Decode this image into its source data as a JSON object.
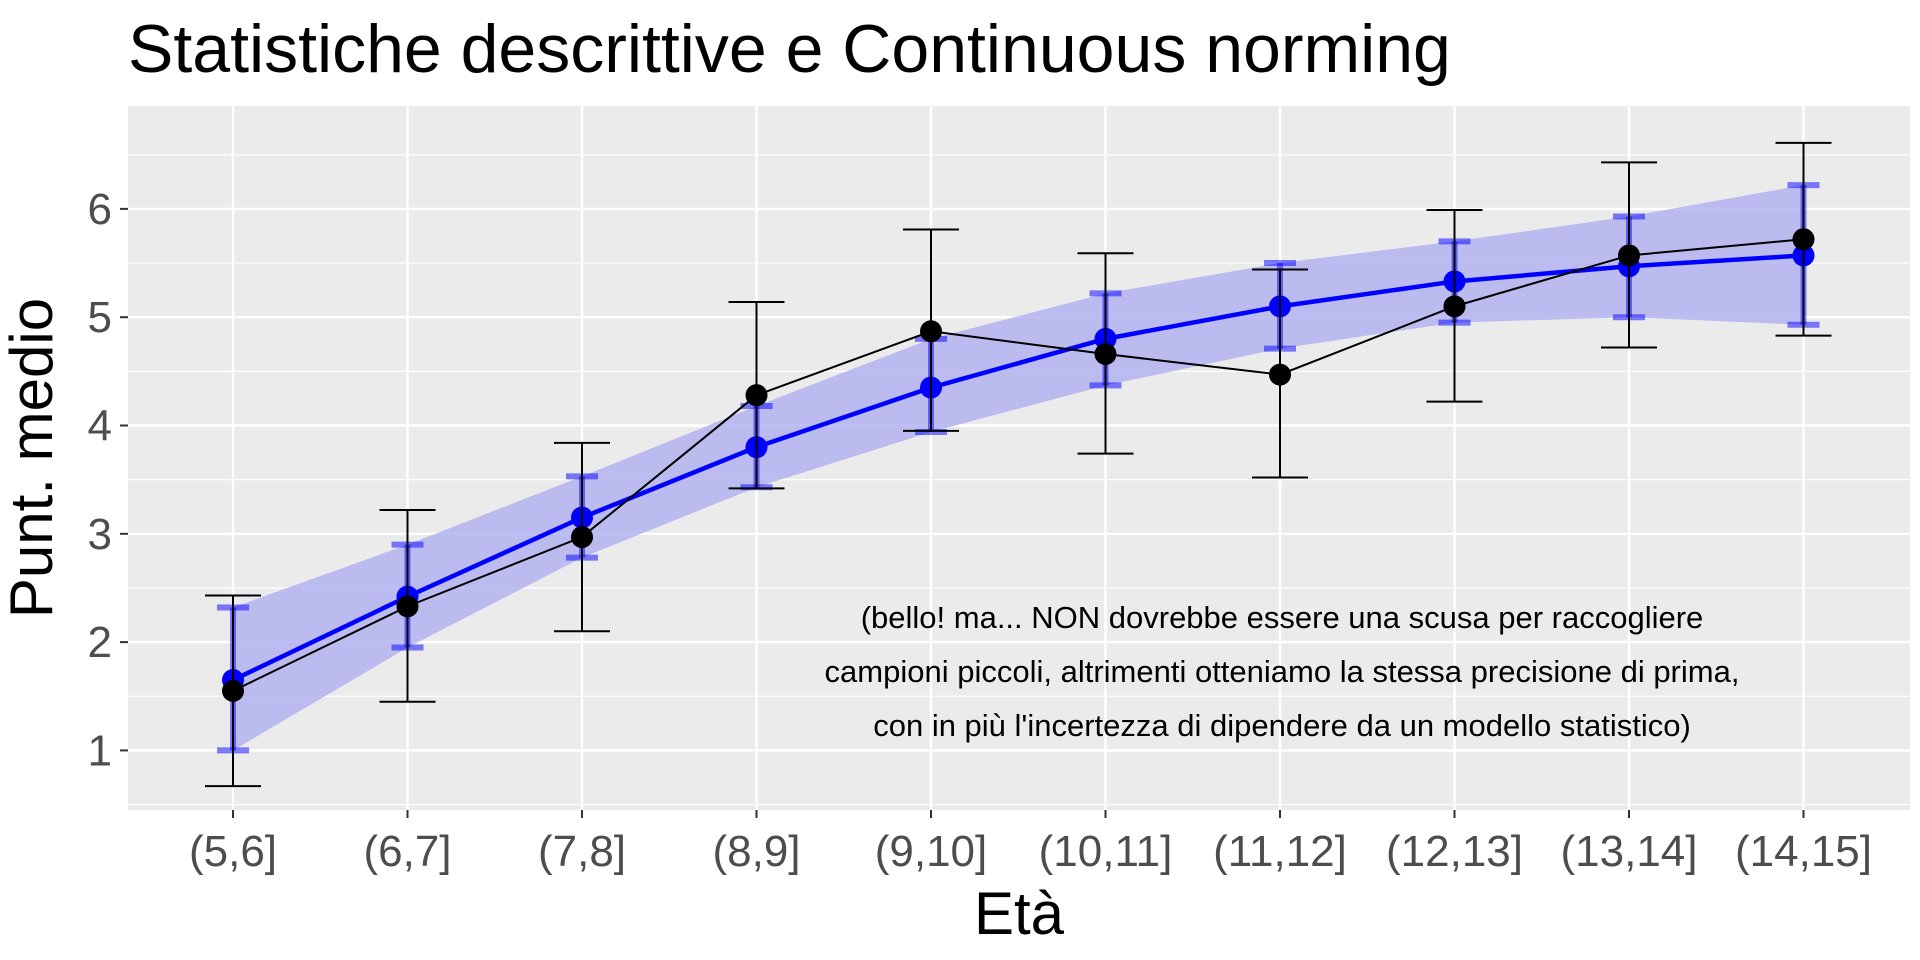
{
  "chart_data": {
    "type": "line",
    "title": "Statistiche descrittive e Continuous norming",
    "xlabel": "Età",
    "ylabel": "Punt. medio",
    "categories": [
      "(5,6]",
      "(6,7]",
      "(7,8]",
      "(8,9]",
      "(9,10]",
      "(10,11]",
      "(11,12]",
      "(12,13]",
      "(13,14]",
      "(14,15]"
    ],
    "y_ticks": [
      1,
      2,
      3,
      4,
      5,
      6
    ],
    "ylim": [
      0.45,
      6.95
    ],
    "grid": true,
    "series": [
      {
        "kind": "model",
        "color": "#0000ff",
        "band_color": "#b3b3f0",
        "values": [
          1.65,
          2.42,
          3.15,
          3.8,
          4.35,
          4.8,
          5.1,
          5.33,
          5.47,
          5.57
        ],
        "band_lower": [
          1.0,
          1.95,
          2.78,
          3.43,
          3.94,
          4.37,
          4.71,
          4.95,
          5.0,
          4.93
        ],
        "band_upper": [
          2.32,
          2.9,
          3.53,
          4.18,
          4.8,
          5.22,
          5.5,
          5.7,
          5.93,
          6.22
        ],
        "errorbar_lower": [
          1.0,
          1.95,
          2.78,
          3.43,
          3.94,
          4.37,
          4.71,
          4.95,
          5.0,
          4.93
        ],
        "errorbar_upper": [
          2.32,
          2.9,
          3.53,
          4.18,
          4.8,
          5.22,
          5.5,
          5.7,
          5.93,
          6.22
        ]
      },
      {
        "kind": "descriptive",
        "color": "#000000",
        "values": [
          1.55,
          2.33,
          2.97,
          4.28,
          4.87,
          4.66,
          4.47,
          5.1,
          5.57,
          5.72
        ],
        "errorbar_lower": [
          0.67,
          1.45,
          2.1,
          3.42,
          3.95,
          3.74,
          3.52,
          4.22,
          4.72,
          4.83
        ],
        "errorbar_upper": [
          2.43,
          3.22,
          3.84,
          5.14,
          5.81,
          5.59,
          5.44,
          5.99,
          6.43,
          6.61
        ]
      }
    ],
    "annotation": [
      "(bello! ma... NON dovrebbe essere una scusa per raccogliere",
      "campioni piccoli, altrimenti otteniamo la stessa precisione di prima,",
      "con in più l'incertezza di dipendere da un modello statistico)"
    ]
  }
}
